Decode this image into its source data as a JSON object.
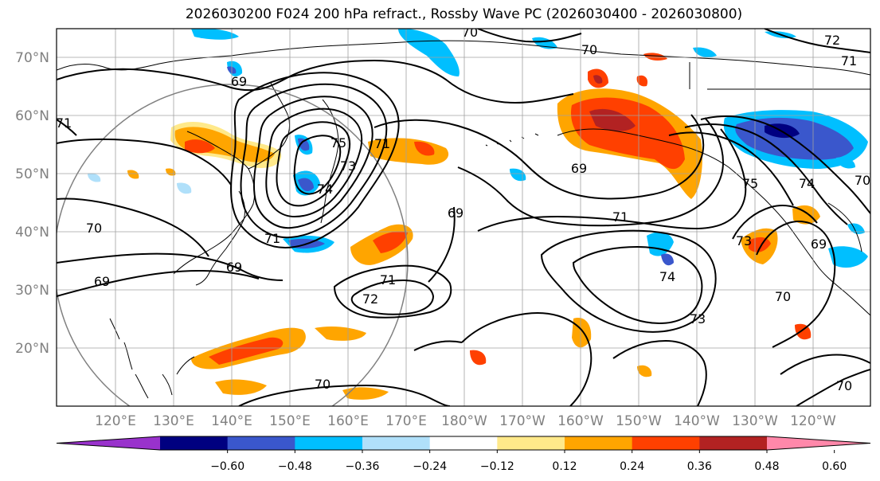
{
  "title": "2026030200 F024 200 hPa refract., Rossby Wave PC (2026030400 - 2026030800)",
  "map": {
    "lat_labels": [
      "70°N",
      "60°N",
      "50°N",
      "40°N",
      "30°N",
      "20°N"
    ],
    "lon_labels": [
      "120°E",
      "130°E",
      "140°E",
      "150°E",
      "160°E",
      "170°E",
      "180°W",
      "170°W",
      "160°W",
      "150°W",
      "140°W",
      "130°W",
      "120°W"
    ],
    "contour_labels": [
      {
        "text": "70"
      },
      {
        "text": "72"
      },
      {
        "text": "71"
      },
      {
        "text": "70"
      },
      {
        "text": "69"
      },
      {
        "text": "71"
      },
      {
        "text": "75"
      },
      {
        "text": "74"
      },
      {
        "text": "73"
      },
      {
        "text": "71"
      },
      {
        "text": "69"
      },
      {
        "text": "75"
      },
      {
        "text": "74"
      },
      {
        "text": "70"
      },
      {
        "text": "69"
      },
      {
        "text": "71"
      },
      {
        "text": "69"
      },
      {
        "text": "69"
      },
      {
        "text": "71"
      },
      {
        "text": "72"
      },
      {
        "text": "74"
      },
      {
        "text": "73"
      },
      {
        "text": "70"
      },
      {
        "text": "73"
      },
      {
        "text": "69"
      },
      {
        "text": "70"
      },
      {
        "text": "70"
      },
      {
        "text": "71"
      },
      {
        "text": "70"
      }
    ]
  },
  "colorbar": {
    "tick_labels": [
      "−0.60",
      "−0.48",
      "−0.36",
      "−0.24",
      "−0.12",
      "0.12",
      "0.24",
      "0.36",
      "0.48",
      "0.60"
    ],
    "bins": [
      {
        "color": "#9932cc"
      },
      {
        "color": "#000080"
      },
      {
        "color": "#3a57cc"
      },
      {
        "color": "#00bfff"
      },
      {
        "color": "#b0e0fa"
      },
      {
        "color": "#ffffff"
      },
      {
        "color": "#ffe98a"
      },
      {
        "color": "#ffa500"
      },
      {
        "color": "#ff4000"
      },
      {
        "color": "#b22222"
      },
      {
        "color": "#ff88aa"
      }
    ]
  },
  "colors": {
    "contour": "#000000",
    "coast": "#000000",
    "grid": "#a0a0a0",
    "circle": "#808080"
  }
}
